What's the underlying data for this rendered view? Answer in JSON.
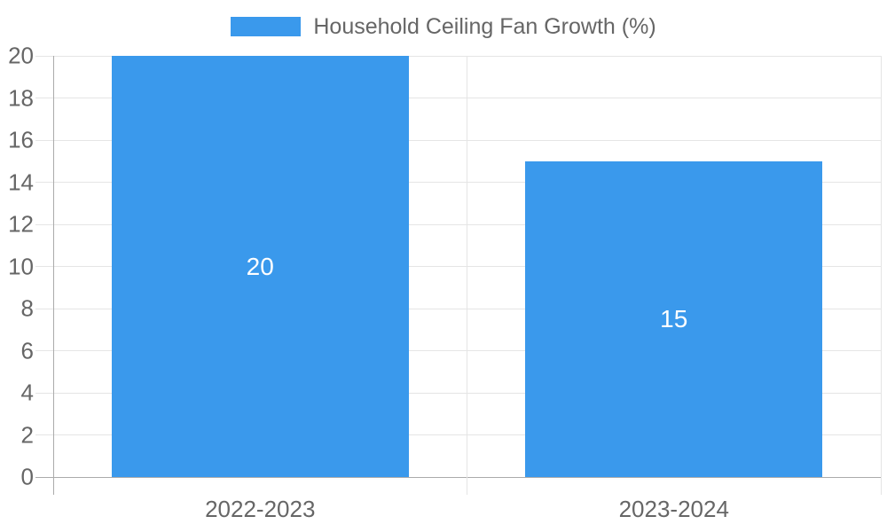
{
  "chart_data": {
    "type": "bar",
    "title": "Household Ceiling Fan Growth (%)",
    "legend": {
      "position": "top",
      "entries": [
        {
          "label": "Household Ceiling Fan Growth (%)",
          "color": "#3A99EC"
        }
      ]
    },
    "categories": [
      "2022-2023",
      "2023-2024"
    ],
    "series": [
      {
        "name": "Household Ceiling Fan Growth (%)",
        "values": [
          20,
          15
        ],
        "color": "#3A99EC"
      }
    ],
    "data_labels": [
      "20",
      "15"
    ],
    "xlabel": "",
    "ylabel": "",
    "ylim": [
      0,
      20
    ],
    "ytick_step": 2,
    "yticks": [
      0,
      2,
      4,
      6,
      8,
      10,
      12,
      14,
      16,
      18,
      20
    ],
    "grid": true
  },
  "colors": {
    "bar": "#3A99EC",
    "text": "#666666",
    "grid": "#E5E5E5",
    "axis": "#ABABAB",
    "bar_label": "#FFFFFF",
    "background": "#FFFFFF"
  }
}
